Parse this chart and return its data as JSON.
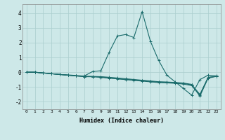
{
  "xlabel": "Humidex (Indice chaleur)",
  "x": [
    0,
    1,
    2,
    3,
    4,
    5,
    6,
    7,
    8,
    9,
    10,
    11,
    12,
    13,
    14,
    15,
    16,
    17,
    18,
    19,
    20,
    21,
    22,
    23
  ],
  "line1": [
    0.0,
    0.0,
    -0.05,
    -0.1,
    -0.15,
    -0.2,
    -0.25,
    -0.25,
    0.05,
    0.1,
    1.35,
    2.45,
    2.55,
    2.35,
    4.1,
    2.1,
    0.8,
    -0.2,
    -0.65,
    -1.1,
    -1.55,
    -0.5,
    -0.2,
    -0.25
  ],
  "line2": [
    0.0,
    0.0,
    -0.05,
    -0.1,
    -0.15,
    -0.2,
    -0.25,
    -0.3,
    -0.3,
    -0.35,
    -0.4,
    -0.45,
    -0.5,
    -0.55,
    -0.6,
    -0.65,
    -0.7,
    -0.72,
    -0.75,
    -0.8,
    -0.9,
    -1.55,
    -0.35,
    -0.28
  ],
  "line3": [
    0.0,
    0.0,
    -0.05,
    -0.1,
    -0.15,
    -0.2,
    -0.25,
    -0.3,
    -0.3,
    -0.32,
    -0.38,
    -0.43,
    -0.48,
    -0.52,
    -0.57,
    -0.62,
    -0.67,
    -0.69,
    -0.72,
    -0.76,
    -0.85,
    -1.62,
    -0.4,
    -0.28
  ],
  "line4": [
    0.0,
    0.0,
    -0.05,
    -0.1,
    -0.15,
    -0.18,
    -0.22,
    -0.27,
    -0.28,
    -0.3,
    -0.34,
    -0.39,
    -0.44,
    -0.49,
    -0.54,
    -0.59,
    -0.64,
    -0.66,
    -0.69,
    -0.73,
    -0.82,
    -1.5,
    -0.35,
    -0.27
  ],
  "line_color": "#1a6b6b",
  "bg_color": "#cde8e8",
  "grid_color": "#aacece",
  "ylim": [
    -2.5,
    4.6
  ],
  "xlim": [
    -0.5,
    23.5
  ],
  "yticks": [
    -2,
    -1,
    0,
    1,
    2,
    3,
    4
  ],
  "xticks": [
    0,
    1,
    2,
    3,
    4,
    5,
    6,
    7,
    8,
    9,
    10,
    11,
    12,
    13,
    14,
    15,
    16,
    17,
    18,
    19,
    20,
    21,
    22,
    23
  ]
}
